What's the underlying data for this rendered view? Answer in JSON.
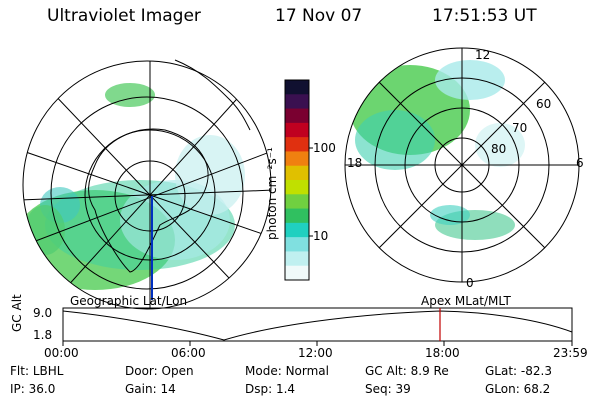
{
  "header": {
    "title": "Ultraviolet Imager",
    "date": "17 Nov 07",
    "time": "17:51:53 UT"
  },
  "left_panel": {
    "label": "Geographic Lat/Lon"
  },
  "right_panel": {
    "label": "Apex MLat/MLT",
    "mlt_labels": [
      "12",
      "18",
      "6",
      "0"
    ],
    "lat_labels": [
      "60",
      "70",
      "80"
    ]
  },
  "colorbar": {
    "unit": "photon cm⁻²s⁻¹",
    "ticks": [
      "100",
      "10"
    ],
    "colors": [
      "#101030",
      "#3a1050",
      "#7a0030",
      "#c00020",
      "#e03010",
      "#f08010",
      "#e0c000",
      "#c0e000",
      "#70d040",
      "#30c060",
      "#20d0c0",
      "#80e0e0",
      "#c0f0f0",
      "#f0fafa"
    ]
  },
  "altitude_plot": {
    "ylabel": "GC Alt",
    "yticks": [
      "9.0",
      "1.8"
    ],
    "xticks": [
      "00:00",
      "06:00",
      "12:00",
      "18:00",
      "23:59"
    ],
    "marker_time": "17:51:53"
  },
  "info": {
    "row1": [
      {
        "label": "Flt:",
        "value": "LBHL"
      },
      {
        "label": "Door:",
        "value": "Open"
      },
      {
        "label": "Mode:",
        "value": "Normal"
      },
      {
        "label": "GC Alt:",
        "value": "8.9 Re"
      },
      {
        "label": "GLat:",
        "value": "-82.3"
      }
    ],
    "row2": [
      {
        "label": "IP:",
        "value": "36.0"
      },
      {
        "label": "Gain:",
        "value": "14"
      },
      {
        "label": "Dsp:",
        "value": "1.4"
      },
      {
        "label": "Seq:",
        "value": "39"
      },
      {
        "label": "GLon:",
        "value": "68.2"
      }
    ]
  }
}
